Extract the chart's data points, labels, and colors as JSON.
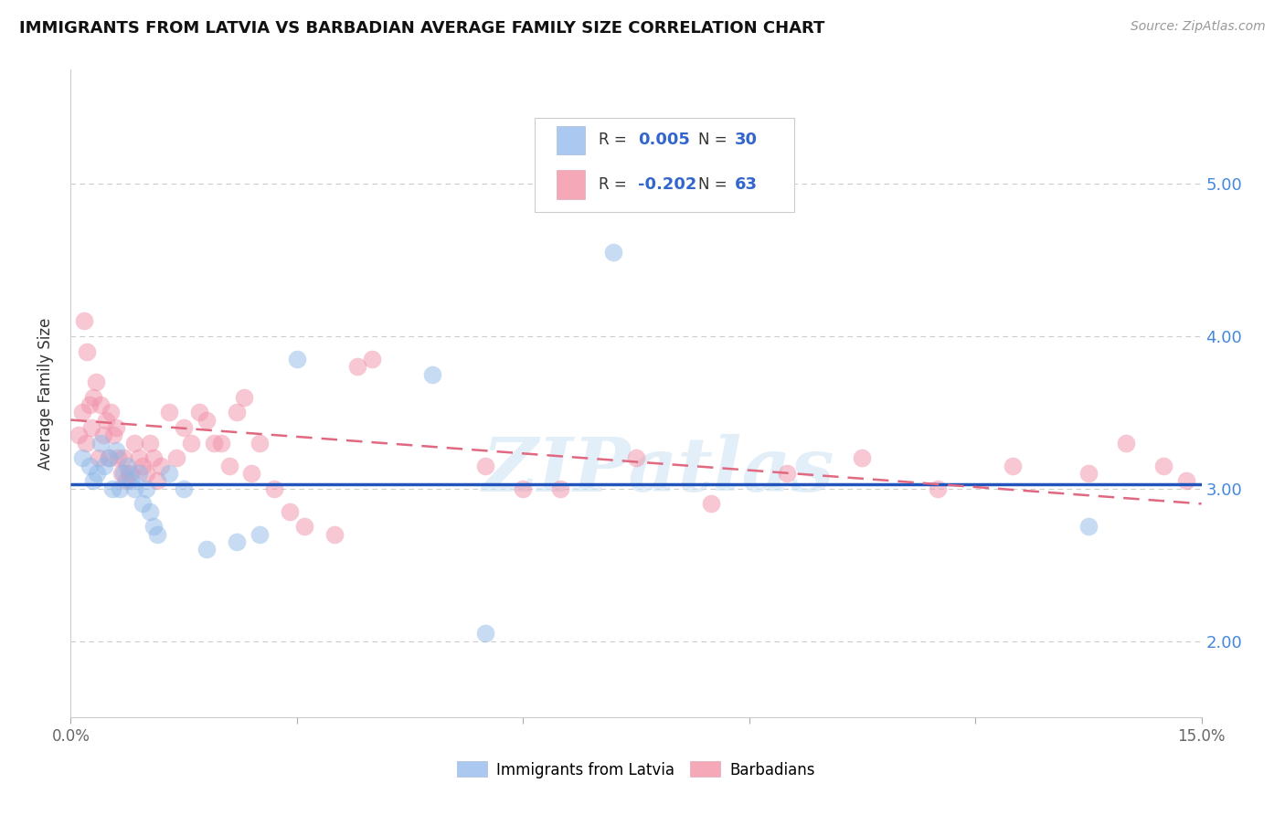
{
  "title": "IMMIGRANTS FROM LATVIA VS BARBADIAN AVERAGE FAMILY SIZE CORRELATION CHART",
  "source": "Source: ZipAtlas.com",
  "ylabel": "Average Family Size",
  "xlim": [
    0.0,
    15.0
  ],
  "ylim": [
    1.5,
    5.75
  ],
  "yticks": [
    2.0,
    3.0,
    4.0,
    5.0
  ],
  "ytick_labels": [
    "2.00",
    "3.00",
    "4.00",
    "5.00"
  ],
  "legend_color1": "#aac8f0",
  "legend_color2": "#f4a8b8",
  "color_blue": "#90b8e8",
  "color_pink": "#f090a8",
  "line_color_blue": "#2255bb",
  "line_color_pink": "#e06880",
  "watermark": "ZIPatlas",
  "blue_scatter_x": [
    0.15,
    0.25,
    0.3,
    0.35,
    0.4,
    0.45,
    0.5,
    0.55,
    0.6,
    0.65,
    0.7,
    0.75,
    0.8,
    0.85,
    0.9,
    0.95,
    1.0,
    1.05,
    1.1,
    1.15,
    1.3,
    1.5,
    1.8,
    2.2,
    2.5,
    3.0,
    4.8,
    5.5,
    7.2,
    13.5
  ],
  "blue_scatter_y": [
    3.2,
    3.15,
    3.05,
    3.1,
    3.3,
    3.15,
    3.2,
    3.0,
    3.25,
    3.0,
    3.1,
    3.15,
    3.05,
    3.0,
    3.1,
    2.9,
    3.0,
    2.85,
    2.75,
    2.7,
    3.1,
    3.0,
    2.6,
    2.65,
    2.7,
    3.85,
    3.75,
    2.05,
    4.55,
    2.75
  ],
  "pink_scatter_x": [
    0.1,
    0.15,
    0.2,
    0.25,
    0.28,
    0.3,
    0.33,
    0.37,
    0.4,
    0.43,
    0.47,
    0.5,
    0.53,
    0.57,
    0.6,
    0.63,
    0.67,
    0.7,
    0.73,
    0.77,
    0.8,
    0.85,
    0.9,
    0.95,
    1.0,
    1.05,
    1.1,
    1.15,
    1.2,
    1.3,
    1.4,
    1.5,
    1.6,
    1.7,
    1.8,
    1.9,
    2.0,
    2.1,
    2.2,
    2.3,
    2.4,
    2.5,
    2.7,
    2.9,
    3.1,
    3.5,
    3.8,
    4.0,
    5.5,
    6.0,
    6.5,
    7.5,
    8.5,
    9.5,
    10.5,
    11.5,
    12.5,
    13.5,
    14.0,
    14.5,
    14.8,
    0.18,
    0.22
  ],
  "pink_scatter_y": [
    3.35,
    3.5,
    3.3,
    3.55,
    3.4,
    3.6,
    3.7,
    3.2,
    3.55,
    3.35,
    3.45,
    3.2,
    3.5,
    3.35,
    3.4,
    3.2,
    3.1,
    3.2,
    3.05,
    3.1,
    3.1,
    3.3,
    3.2,
    3.15,
    3.1,
    3.3,
    3.2,
    3.05,
    3.15,
    3.5,
    3.2,
    3.4,
    3.3,
    3.5,
    3.45,
    3.3,
    3.3,
    3.15,
    3.5,
    3.6,
    3.1,
    3.3,
    3.0,
    2.85,
    2.75,
    2.7,
    3.8,
    3.85,
    3.15,
    3.0,
    3.0,
    3.2,
    2.9,
    3.1,
    3.2,
    3.0,
    3.15,
    3.1,
    3.3,
    3.15,
    3.05,
    4.1,
    3.9
  ],
  "blue_trend_x": [
    0.0,
    15.0
  ],
  "blue_trend_y": [
    3.03,
    3.03
  ],
  "pink_trend_x": [
    0.0,
    15.0
  ],
  "pink_trend_y": [
    3.45,
    2.9
  ]
}
